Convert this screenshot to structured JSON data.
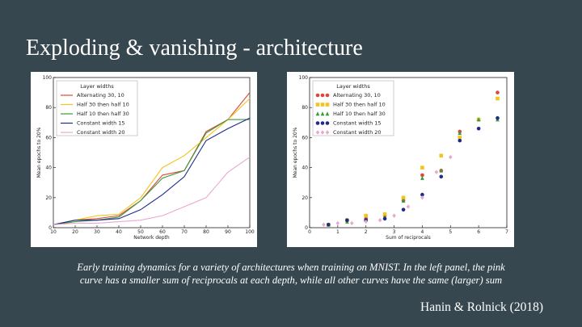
{
  "slide": {
    "title": "Exploding & vanishing - architecture",
    "caption_line1": "Early training dynamics for a variety of architectures when training on MNIST. In the left panel, the pink",
    "caption_line2": "curve has a smaller sum of reciprocals at each depth, while all other curves have the same (larger) sum",
    "citation": "Hanin & Rolnick (2018)"
  },
  "chart_data": [
    {
      "type": "line",
      "xlabel": "Network depth",
      "ylabel": "Mean epochs to 20%",
      "legend_title": "Layer widths",
      "legend_position": "top-left",
      "xlim": [
        10,
        100
      ],
      "ylim": [
        0,
        100
      ],
      "xticks": [
        10,
        20,
        30,
        40,
        50,
        60,
        70,
        80,
        90,
        100
      ],
      "yticks": [
        0,
        20,
        40,
        60,
        80,
        100
      ],
      "x": [
        10,
        20,
        30,
        40,
        50,
        60,
        70,
        80,
        90,
        100
      ],
      "series": [
        {
          "name": "Alternating 30, 10",
          "color": "#e0453a",
          "values": [
            2,
            5,
            6,
            8,
            18,
            35,
            38,
            64,
            72,
            90
          ]
        },
        {
          "name": "Half 30 then half 10",
          "color": "#f2c41d",
          "values": [
            2,
            5,
            8,
            9,
            20,
            40,
            48,
            60,
            72,
            86
          ]
        },
        {
          "name": "Half 10 then half 30",
          "color": "#3a9b3a",
          "values": [
            2,
            4,
            5,
            7,
            18,
            33,
            38,
            63,
            72,
            72
          ]
        },
        {
          "name": "Constant width 15",
          "color": "#1f2a8a",
          "values": [
            2,
            5,
            5,
            6,
            12,
            22,
            34,
            58,
            66,
            73
          ]
        },
        {
          "name": "Constant width 20",
          "color": "#e9a8cf",
          "values": [
            2,
            3,
            3,
            4,
            5,
            8,
            14,
            20,
            37,
            47
          ]
        }
      ]
    },
    {
      "type": "scatter",
      "xlabel": "Sum of reciprocals",
      "ylabel": "Mean epochs to 20%",
      "legend_title": "Layer widths",
      "legend_position": "top-left",
      "xlim": [
        0,
        7
      ],
      "ylim": [
        0,
        100
      ],
      "xticks": [
        0,
        1,
        2,
        3,
        4,
        5,
        6,
        7
      ],
      "yticks": [
        0,
        20,
        40,
        60,
        80,
        100
      ],
      "series": [
        {
          "name": "Alternating 30, 10",
          "color": "#e0453a",
          "marker": "circle",
          "x": [
            0.67,
            1.33,
            2.0,
            2.67,
            3.33,
            4.0,
            4.67,
            5.33,
            6.0,
            6.67
          ],
          "y": [
            2,
            5,
            6,
            8,
            18,
            35,
            38,
            64,
            72,
            90
          ]
        },
        {
          "name": "Half 30 then half 10",
          "color": "#f2c41d",
          "marker": "square",
          "x": [
            0.67,
            1.33,
            2.0,
            2.67,
            3.33,
            4.0,
            4.67,
            5.33,
            6.0,
            6.67
          ],
          "y": [
            2,
            5,
            8,
            9,
            20,
            40,
            48,
            60,
            72,
            86
          ]
        },
        {
          "name": "Half 10 then half 30",
          "color": "#3a9b3a",
          "marker": "triangle",
          "x": [
            0.67,
            1.33,
            2.0,
            2.67,
            3.33,
            4.0,
            4.67,
            5.33,
            6.0,
            6.67
          ],
          "y": [
            2,
            4,
            5,
            7,
            18,
            33,
            38,
            63,
            72,
            72
          ]
        },
        {
          "name": "Constant width 15",
          "color": "#1f2a8a",
          "marker": "circle",
          "x": [
            0.67,
            1.33,
            2.0,
            2.67,
            3.33,
            4.0,
            4.67,
            5.33,
            6.0,
            6.67
          ],
          "y": [
            2,
            5,
            5,
            6,
            12,
            22,
            34,
            58,
            66,
            73
          ]
        },
        {
          "name": "Constant width 20",
          "color": "#e9a8cf",
          "marker": "diamond",
          "x": [
            0.5,
            1.0,
            1.5,
            2.0,
            2.5,
            3.0,
            3.5,
            4.0,
            4.5,
            5.0
          ],
          "y": [
            2,
            3,
            3,
            4,
            5,
            8,
            14,
            20,
            37,
            47
          ]
        }
      ]
    }
  ]
}
